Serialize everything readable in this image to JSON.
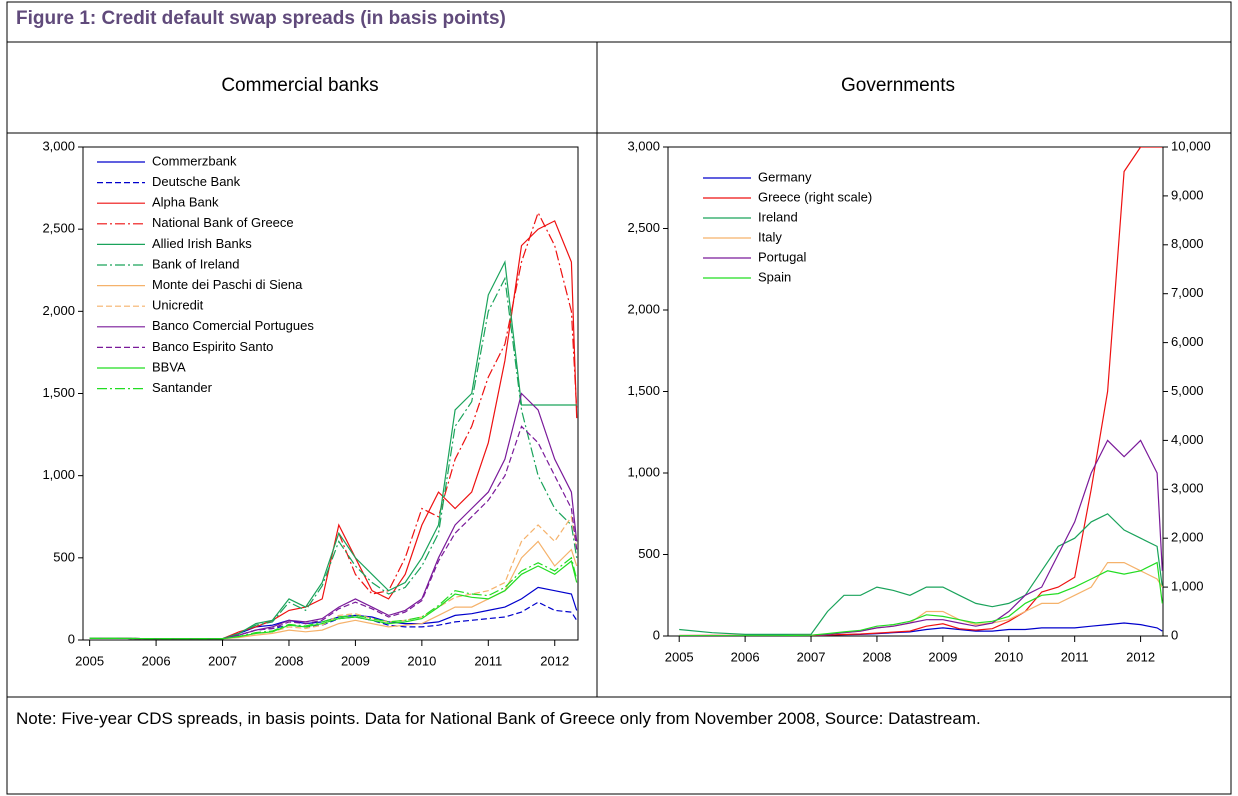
{
  "title": "Figure 1: Credit default swap spreads (in basis points)",
  "note": "Note: Five-year CDS spreads, in basis points. Data for National Bank of Greece only from November 2008, Source: Datastream.",
  "chart_data": [
    {
      "type": "line",
      "title": "Commercial banks",
      "x": [
        2005,
        2005.5,
        2006,
        2006.5,
        2007,
        2007.25,
        2007.5,
        2007.75,
        2008,
        2008.25,
        2008.5,
        2008.75,
        2009,
        2009.25,
        2009.5,
        2009.75,
        2010,
        2010.25,
        2010.5,
        2010.75,
        2011,
        2011.25,
        2011.5,
        2011.75,
        2012,
        2012.25,
        2012.33
      ],
      "xlim": [
        2004.9,
        2012.35
      ],
      "xticks": [
        2005,
        2006,
        2007,
        2008,
        2009,
        2010,
        2011,
        2012
      ],
      "ylim": [
        0,
        3000
      ],
      "yticks": [
        0,
        500,
        {
          "value": 1000,
          "label": "1,000"
        },
        {
          "value": 1500,
          "label": "1,500"
        },
        {
          "value": 2000,
          "label": "2,000"
        },
        {
          "value": 2500,
          "label": "2,500"
        },
        {
          "value": 3000,
          "label": "3,000"
        }
      ],
      "series": [
        {
          "name": "Commerzbank",
          "color": "#0000cc",
          "dash": "solid",
          "values": [
            10,
            10,
            8,
            8,
            8,
            40,
            80,
            90,
            120,
            100,
            110,
            140,
            150,
            140,
            110,
            100,
            100,
            110,
            150,
            160,
            180,
            200,
            250,
            320,
            300,
            280,
            180
          ]
        },
        {
          "name": "Deutsche Bank",
          "color": "#0000cc",
          "dash": "dashed",
          "values": [
            10,
            10,
            8,
            8,
            8,
            30,
            60,
            70,
            90,
            80,
            90,
            130,
            140,
            120,
            90,
            80,
            80,
            90,
            110,
            120,
            130,
            140,
            170,
            230,
            180,
            170,
            120
          ]
        },
        {
          "name": "Alpha Bank",
          "color": "#ee1111",
          "dash": "solid",
          "values": [
            10,
            10,
            8,
            8,
            8,
            50,
            80,
            120,
            180,
            200,
            250,
            700,
            500,
            300,
            250,
            400,
            700,
            900,
            800,
            900,
            1200,
            1700,
            2400,
            2500,
            2550,
            2300,
            1350
          ]
        },
        {
          "name": "National Bank of Greece",
          "color": "#ee1111",
          "dash": "dashdot",
          "values": [
            null,
            null,
            null,
            null,
            null,
            null,
            null,
            null,
            null,
            null,
            null,
            650,
            400,
            280,
            300,
            500,
            800,
            750,
            1100,
            1300,
            1600,
            1800,
            2300,
            2600,
            2400,
            2000,
            1400
          ]
        },
        {
          "name": "Allied Irish Banks",
          "color": "#1aa35b",
          "dash": "solid",
          "values": [
            10,
            10,
            8,
            8,
            8,
            40,
            100,
            120,
            250,
            200,
            350,
            650,
            500,
            400,
            300,
            350,
            500,
            700,
            1400,
            1500,
            2100,
            2300,
            1430,
            1430,
            1430,
            1430,
            1430
          ]
        },
        {
          "name": "Bank of Ireland",
          "color": "#1aa35b",
          "dash": "dashdot",
          "values": [
            10,
            10,
            8,
            8,
            8,
            40,
            90,
            110,
            230,
            180,
            330,
            600,
            450,
            350,
            280,
            320,
            450,
            650,
            1300,
            1450,
            2000,
            2200,
            1400,
            1000,
            800,
            700,
            500
          ]
        },
        {
          "name": "Monte dei Paschi di Siena",
          "color": "#f5b26b",
          "dash": "solid",
          "values": [
            10,
            10,
            8,
            8,
            8,
            15,
            30,
            40,
            60,
            50,
            60,
            100,
            120,
            100,
            80,
            90,
            100,
            150,
            200,
            200,
            250,
            300,
            500,
            600,
            450,
            550,
            450
          ]
        },
        {
          "name": "Unicredit",
          "color": "#f5b26b",
          "dash": "dashed",
          "values": [
            10,
            10,
            8,
            8,
            8,
            20,
            40,
            50,
            80,
            70,
            90,
            150,
            160,
            130,
            110,
            120,
            140,
            200,
            260,
            280,
            300,
            350,
            600,
            700,
            600,
            750,
            550
          ]
        },
        {
          "name": "Banco Comercial Portugues",
          "color": "#7a1a9a",
          "dash": "solid",
          "values": [
            10,
            10,
            8,
            8,
            8,
            30,
            60,
            80,
            120,
            110,
            130,
            200,
            250,
            200,
            150,
            180,
            250,
            500,
            700,
            800,
            900,
            1100,
            1500,
            1400,
            1100,
            900,
            600
          ]
        },
        {
          "name": "Banco Espirito Santo",
          "color": "#7a1a9a",
          "dash": "dashed",
          "values": [
            10,
            10,
            8,
            8,
            8,
            30,
            60,
            70,
            110,
            100,
            120,
            190,
            230,
            190,
            140,
            170,
            240,
            480,
            650,
            750,
            850,
            1000,
            1300,
            1200,
            1000,
            800,
            550
          ]
        },
        {
          "name": "BBVA",
          "color": "#22dd22",
          "dash": "solid",
          "values": [
            10,
            10,
            8,
            8,
            8,
            20,
            40,
            50,
            90,
            80,
            100,
            130,
            140,
            120,
            100,
            110,
            130,
            200,
            280,
            260,
            250,
            300,
            400,
            450,
            400,
            480,
            350
          ]
        },
        {
          "name": "Santander",
          "color": "#22dd22",
          "dash": "dashdot",
          "values": [
            10,
            10,
            8,
            8,
            8,
            22,
            45,
            55,
            95,
            85,
            110,
            140,
            150,
            130,
            110,
            120,
            140,
            210,
            300,
            280,
            270,
            320,
            420,
            470,
            420,
            500,
            370
          ]
        }
      ]
    },
    {
      "type": "line",
      "title": "Governments",
      "x": [
        2005,
        2005.5,
        2006,
        2006.5,
        2007,
        2007.25,
        2007.5,
        2007.75,
        2008,
        2008.25,
        2008.5,
        2008.75,
        2009,
        2009.25,
        2009.5,
        2009.75,
        2010,
        2010.25,
        2010.5,
        2010.75,
        2011,
        2011.25,
        2011.5,
        2011.75,
        2012,
        2012.25,
        2012.33
      ],
      "xlim": [
        2004.83,
        2012.34
      ],
      "xticks": [
        2005,
        2006,
        2007,
        2008,
        2009,
        2010,
        2011,
        2012
      ],
      "ylim": [
        0,
        3000
      ],
      "yticks": [
        0,
        500,
        {
          "value": 1000,
          "label": "1,000"
        },
        {
          "value": 1500,
          "label": "1,500"
        },
        {
          "value": 2000,
          "label": "2,000"
        },
        {
          "value": 2500,
          "label": "2,500"
        },
        {
          "value": 3000,
          "label": "3,000"
        }
      ],
      "y2lim": [
        0,
        10000
      ],
      "y2ticks": [
        0,
        {
          "value": 1000,
          "label": "1,000"
        },
        {
          "value": 2000,
          "label": "2,000"
        },
        {
          "value": 3000,
          "label": "3,000"
        },
        {
          "value": 4000,
          "label": "4,000"
        },
        {
          "value": 5000,
          "label": "5,000"
        },
        {
          "value": 6000,
          "label": "6,000"
        },
        {
          "value": 7000,
          "label": "7,000"
        },
        {
          "value": 8000,
          "label": "8,000"
        },
        {
          "value": 9000,
          "label": "9,000"
        },
        {
          "value": 10000,
          "label": "10,000"
        }
      ],
      "series": [
        {
          "name": "Germany",
          "color": "#0000cc",
          "dash": "solid",
          "values": [
            2,
            2,
            2,
            2,
            2,
            5,
            8,
            10,
            15,
            20,
            25,
            40,
            50,
            40,
            30,
            30,
            40,
            40,
            50,
            50,
            50,
            60,
            70,
            80,
            70,
            50,
            30
          ]
        },
        {
          "name": "Greece (right scale)",
          "color": "#ee1111",
          "dash": "solid",
          "axis": "y2",
          "values": [
            10,
            15,
            10,
            10,
            10,
            20,
            30,
            40,
            60,
            80,
            100,
            200,
            250,
            150,
            120,
            150,
            300,
            500,
            900,
            1000,
            1200,
            3000,
            5000,
            9500,
            10000,
            10000,
            10000
          ]
        },
        {
          "name": "Ireland",
          "color": "#1aa35b",
          "dash": "solid",
          "values": [
            40,
            20,
            10,
            10,
            10,
            150,
            250,
            250,
            300,
            280,
            250,
            300,
            300,
            250,
            200,
            180,
            200,
            250,
            400,
            550,
            600,
            700,
            750,
            650,
            600,
            550,
            300
          ]
        },
        {
          "name": "Italy",
          "color": "#f5b26b",
          "dash": "solid",
          "values": [
            2,
            2,
            2,
            2,
            5,
            10,
            20,
            30,
            50,
            60,
            80,
            150,
            150,
            100,
            70,
            80,
            100,
            150,
            200,
            200,
            250,
            300,
            450,
            450,
            400,
            350,
            300
          ]
        },
        {
          "name": "Portugal",
          "color": "#7a1a9a",
          "dash": "solid",
          "values": [
            2,
            2,
            2,
            2,
            5,
            10,
            20,
            30,
            50,
            60,
            80,
            100,
            100,
            80,
            60,
            80,
            150,
            250,
            300,
            500,
            700,
            1000,
            1200,
            1100,
            1200,
            1000,
            400
          ]
        },
        {
          "name": "Spain",
          "color": "#22dd22",
          "dash": "solid",
          "values": [
            2,
            2,
            2,
            2,
            5,
            15,
            25,
            35,
            60,
            70,
            90,
            130,
            120,
            100,
            80,
            90,
            120,
            200,
            250,
            260,
            300,
            350,
            400,
            380,
            400,
            450,
            200
          ]
        }
      ]
    }
  ]
}
